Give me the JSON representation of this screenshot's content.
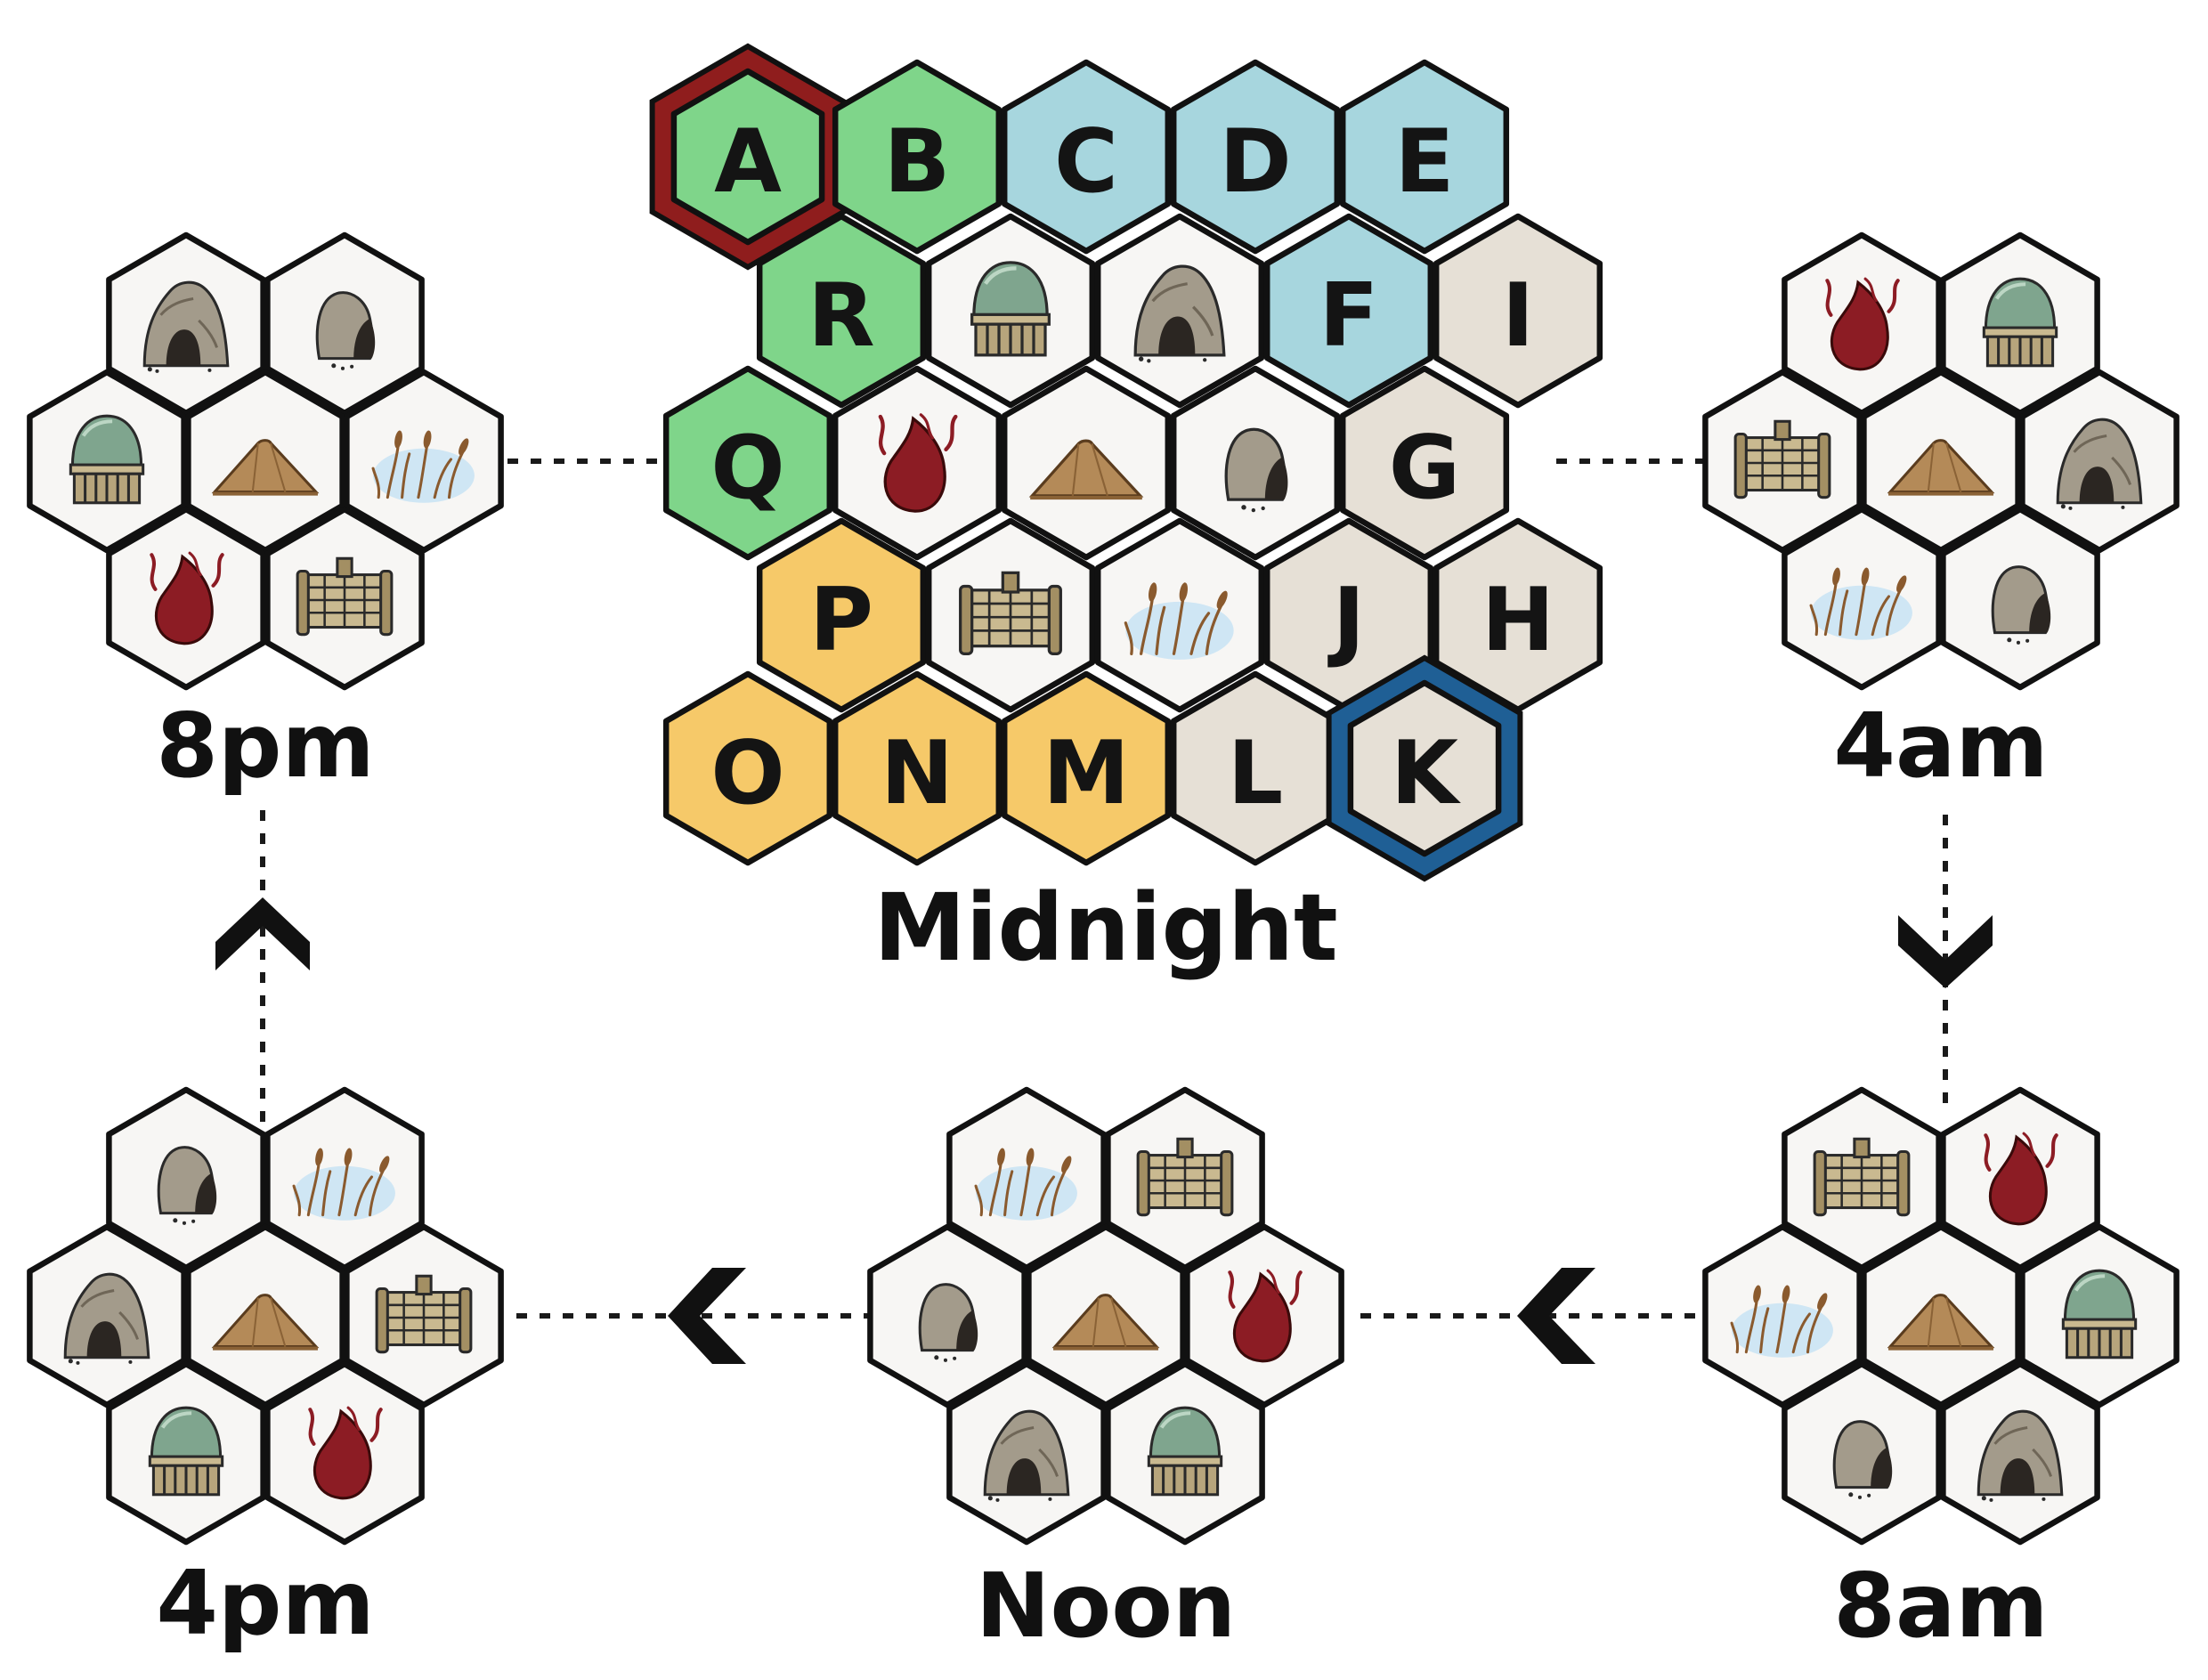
{
  "colors": {
    "green": "#7fd58a",
    "blue": "#a7d6de",
    "beige": "#e6e0d6",
    "yellow": "#f6c969",
    "white": "#f7f6f4",
    "red_border": "#8f1d1d",
    "blue_border": "#1f5f95"
  },
  "grid": {
    "caption": "Midnight",
    "cells": [
      {
        "label": "A",
        "color": "green",
        "highlight": "red_border"
      },
      {
        "label": "B",
        "color": "green"
      },
      {
        "label": "C",
        "color": "blue"
      },
      {
        "label": "D",
        "color": "blue"
      },
      {
        "label": "E",
        "color": "blue"
      },
      {
        "label": "R",
        "color": "green"
      },
      {
        "icon": "dome-hut-icon",
        "color": "white"
      },
      {
        "icon": "cave-icon",
        "color": "white"
      },
      {
        "label": "F",
        "color": "blue"
      },
      {
        "label": "I",
        "color": "beige"
      },
      {
        "label": "Q",
        "color": "green"
      },
      {
        "icon": "fire-icon",
        "color": "white"
      },
      {
        "icon": "mound-icon",
        "color": "white"
      },
      {
        "icon": "boulder-icon",
        "color": "white"
      },
      {
        "label": "G",
        "color": "beige"
      },
      {
        "label": "P",
        "color": "yellow"
      },
      {
        "icon": "crate-icon",
        "color": "white"
      },
      {
        "icon": "reeds-icon",
        "color": "white"
      },
      {
        "label": "J",
        "color": "beige"
      },
      {
        "label": "H",
        "color": "beige"
      },
      {
        "label": "O",
        "color": "yellow"
      },
      {
        "label": "N",
        "color": "yellow"
      },
      {
        "label": "M",
        "color": "yellow"
      },
      {
        "label": "L",
        "color": "beige"
      },
      {
        "label": "K",
        "color": "beige",
        "highlight": "blue_border"
      }
    ]
  },
  "clusters": [
    {
      "time": "8pm",
      "icons": [
        "cave-icon",
        "boulder-icon",
        "dome-hut-icon",
        "mound-icon",
        "reeds-icon",
        "fire-icon",
        "crate-icon"
      ]
    },
    {
      "time": "4am",
      "icons": [
        "fire-icon",
        "dome-hut-icon",
        "crate-icon",
        "mound-icon",
        "cave-icon",
        "reeds-icon",
        "boulder-icon"
      ]
    },
    {
      "time": "8am",
      "icons": [
        "crate-icon",
        "fire-icon",
        "reeds-icon",
        "mound-icon",
        "dome-hut-icon",
        "boulder-icon",
        "cave-icon"
      ]
    },
    {
      "time": "Noon",
      "icons": [
        "reeds-icon",
        "crate-icon",
        "boulder-icon",
        "mound-icon",
        "fire-icon",
        "cave-icon",
        "dome-hut-icon"
      ]
    },
    {
      "time": "4pm",
      "icons": [
        "boulder-icon",
        "reeds-icon",
        "cave-icon",
        "mound-icon",
        "crate-icon",
        "dome-hut-icon",
        "fire-icon"
      ]
    }
  ]
}
